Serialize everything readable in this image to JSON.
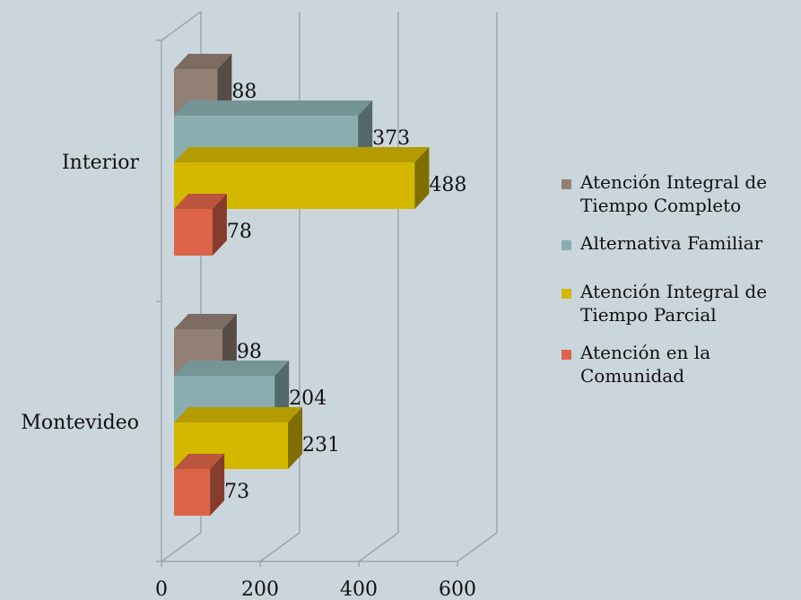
{
  "chart_data": {
    "type": "bar",
    "orientation": "horizontal",
    "three_d": true,
    "categories": [
      "Interior",
      "Montevideo"
    ],
    "series": [
      {
        "name": "Atención Integral de Tiempo Completo",
        "color": "#927f76",
        "values": [
          88,
          98
        ]
      },
      {
        "name": "Alternativa Familiar",
        "color": "#8aaeb0",
        "values": [
          373,
          204
        ]
      },
      {
        "name": "Atención Integral de Tiempo Parcial",
        "color": "#d4b800",
        "values": [
          488,
          231
        ]
      },
      {
        "name": "Atención en la Comunidad",
        "color": "#dd6449",
        "values": [
          78,
          73
        ]
      }
    ],
    "x_ticks": [
      "0",
      "200",
      "400",
      "600"
    ],
    "xlim": [
      0,
      600
    ],
    "grid": true,
    "legend_position": "right",
    "title": "",
    "xlabel": "",
    "ylabel": ""
  }
}
